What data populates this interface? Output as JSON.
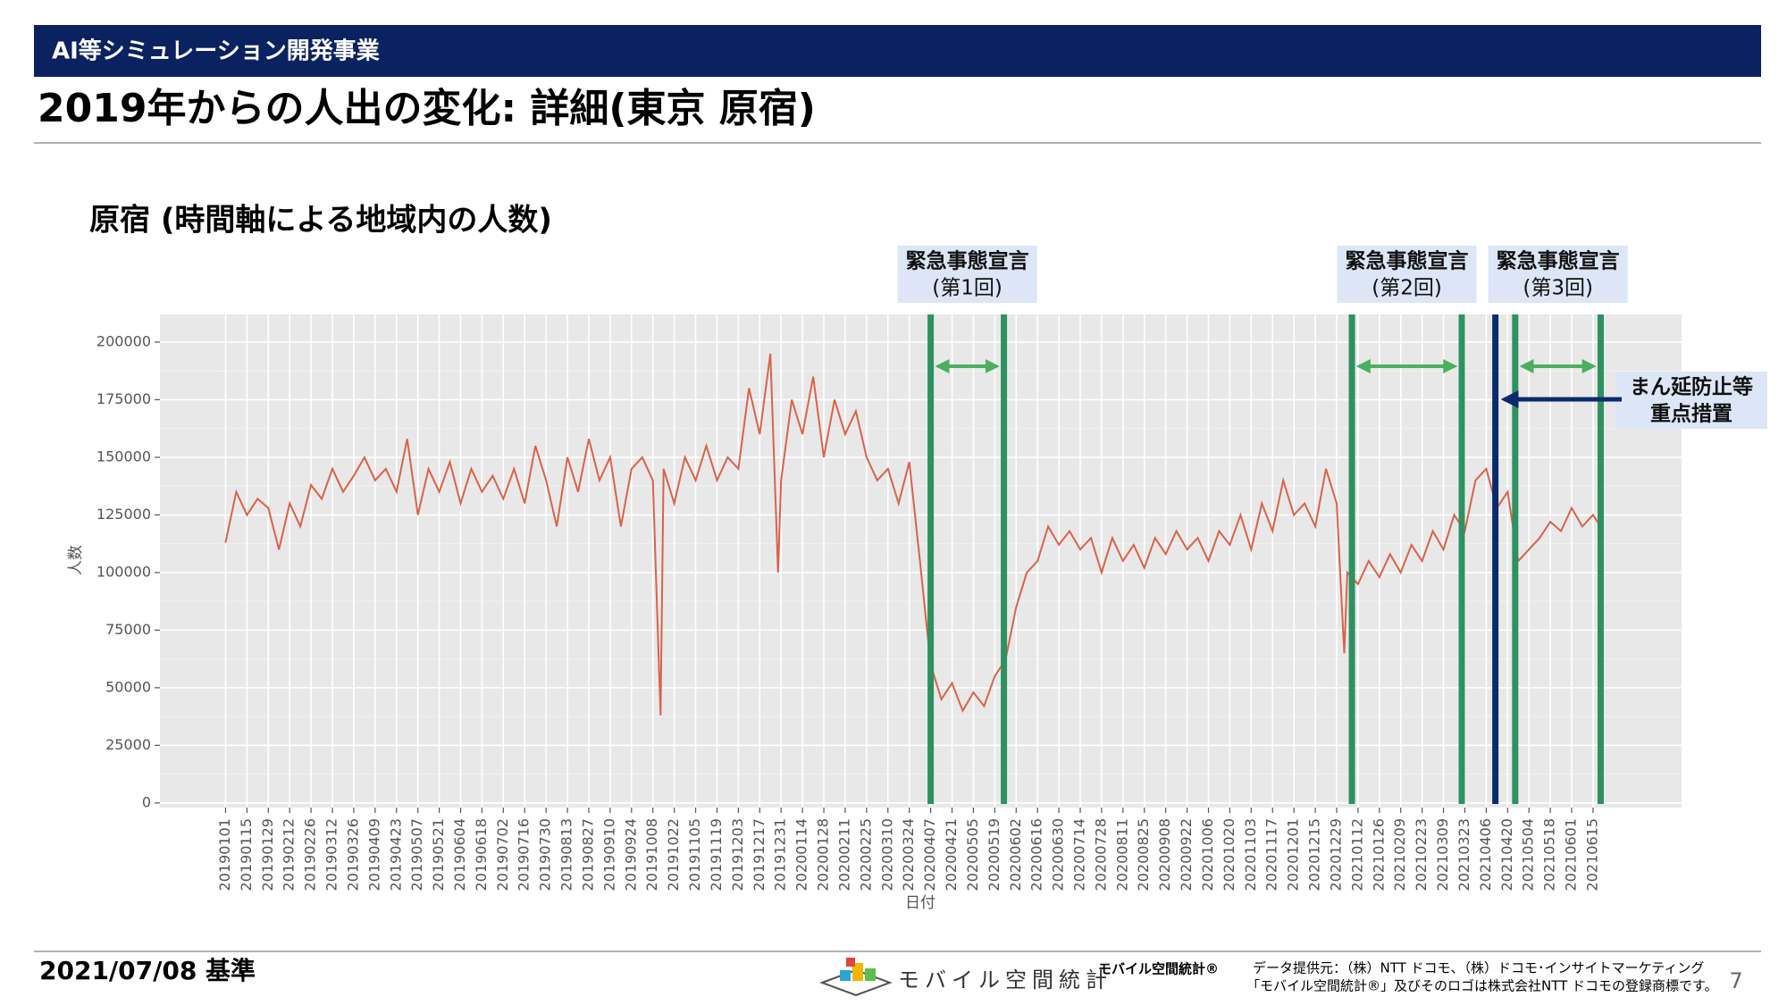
{
  "header": {
    "section": "AI等シミュレーション開発事業",
    "title": "2019年からの人出の変化: 詳細(東京 原宿)"
  },
  "chart_data": {
    "type": "line",
    "title": "原宿 (時間軸による地域内の人数)",
    "x_label": "日付",
    "y_label": "人数",
    "color": "#d9634a",
    "grid": true,
    "x": [
      "20190101",
      "20190108",
      "20190115",
      "20190122",
      "20190129",
      "20190205",
      "20190212",
      "20190219",
      "20190226",
      "20190305",
      "20190312",
      "20190319",
      "20190326",
      "20190402",
      "20190409",
      "20190416",
      "20190423",
      "20190430",
      "20190507",
      "20190514",
      "20190521",
      "20190528",
      "20190604",
      "20190611",
      "20190618",
      "20190625",
      "20190702",
      "20190709",
      "20190716",
      "20190723",
      "20190730",
      "20190806",
      "20190813",
      "20190820",
      "20190827",
      "20190903",
      "20190910",
      "20190917",
      "20190924",
      "20191001",
      "20191008",
      "20191013",
      "20191015",
      "20191022",
      "20191029",
      "20191105",
      "20191112",
      "20191119",
      "20191126",
      "20191203",
      "20191210",
      "20191217",
      "20191224",
      "20191229",
      "20191231",
      "20200107",
      "20200114",
      "20200121",
      "20200128",
      "20200204",
      "20200211",
      "20200218",
      "20200225",
      "20200303",
      "20200310",
      "20200317",
      "20200324",
      "20200331",
      "20200407",
      "20200414",
      "20200421",
      "20200428",
      "20200505",
      "20200512",
      "20200519",
      "20200526",
      "20200602",
      "20200609",
      "20200616",
      "20200623",
      "20200630",
      "20200707",
      "20200714",
      "20200721",
      "20200728",
      "20200804",
      "20200811",
      "20200818",
      "20200825",
      "20200901",
      "20200908",
      "20200915",
      "20200922",
      "20200929",
      "20201006",
      "20201013",
      "20201020",
      "20201027",
      "20201103",
      "20201110",
      "20201117",
      "20201124",
      "20201201",
      "20201208",
      "20201215",
      "20201222",
      "20201229",
      "20210103",
      "20210105",
      "20210112",
      "20210119",
      "20210126",
      "20210202",
      "20210209",
      "20210216",
      "20210223",
      "20210302",
      "20210309",
      "20210316",
      "20210323",
      "20210330",
      "20210406",
      "20210413",
      "20210420",
      "20210427",
      "20210504",
      "20210511",
      "20210518",
      "20210525",
      "20210601",
      "20210608",
      "20210615",
      "20210620"
    ],
    "values": [
      113000,
      135000,
      125000,
      132000,
      128000,
      110000,
      130000,
      120000,
      138000,
      132000,
      145000,
      135000,
      142000,
      150000,
      140000,
      145000,
      135000,
      158000,
      125000,
      145000,
      135000,
      148000,
      130000,
      145000,
      135000,
      142000,
      132000,
      145000,
      130000,
      155000,
      140000,
      120000,
      150000,
      135000,
      158000,
      140000,
      150000,
      120000,
      145000,
      150000,
      140000,
      38000,
      145000,
      130000,
      150000,
      140000,
      155000,
      140000,
      150000,
      145000,
      180000,
      160000,
      195000,
      100000,
      140000,
      175000,
      160000,
      185000,
      150000,
      175000,
      160000,
      170000,
      150000,
      140000,
      145000,
      130000,
      148000,
      105000,
      60000,
      45000,
      52000,
      40000,
      48000,
      42000,
      55000,
      62000,
      85000,
      100000,
      105000,
      120000,
      112000,
      118000,
      110000,
      115000,
      100000,
      115000,
      105000,
      112000,
      102000,
      115000,
      108000,
      118000,
      110000,
      115000,
      105000,
      118000,
      112000,
      125000,
      110000,
      130000,
      118000,
      140000,
      125000,
      130000,
      120000,
      145000,
      130000,
      65000,
      100000,
      95000,
      105000,
      98000,
      108000,
      100000,
      112000,
      105000,
      118000,
      110000,
      125000,
      118000,
      140000,
      145000,
      128000,
      135000,
      105000,
      110000,
      115000,
      122000,
      118000,
      128000,
      120000,
      125000,
      120000
    ],
    "xlim": [
      "20181119",
      "20210812"
    ],
    "xticks": [
      "20190101",
      "20190115",
      "20190129",
      "20190212",
      "20190226",
      "20190312",
      "20190326",
      "20190409",
      "20190423",
      "20190507",
      "20190521",
      "20190604",
      "20190618",
      "20190702",
      "20190716",
      "20190730",
      "20190813",
      "20190827",
      "20190910",
      "20190924",
      "20191008",
      "20191022",
      "20191105",
      "20191119",
      "20191203",
      "20191217",
      "20191231",
      "20200114",
      "20200128",
      "20200211",
      "20200225",
      "20200310",
      "20200324",
      "20200407",
      "20200421",
      "20200505",
      "20200519",
      "20200602",
      "20200616",
      "20200630",
      "20200714",
      "20200728",
      "20200811",
      "20200825",
      "20200908",
      "20200922",
      "20201006",
      "20201020",
      "20201103",
      "20201117",
      "20201201",
      "20201215",
      "20201229",
      "20210112",
      "20210126",
      "20210209",
      "20210223",
      "20210309",
      "20210323",
      "20210406",
      "20210420",
      "20210504",
      "20210518",
      "20210601",
      "20210615"
    ],
    "ylim": [
      -2000,
      212000
    ],
    "yticks": [
      0,
      25000,
      50000,
      75000,
      100000,
      125000,
      150000,
      175000,
      200000
    ],
    "periods": [
      {
        "title": "緊急事態宣言",
        "subtitle": "(第1回)",
        "start": "20200407",
        "end": "20200525"
      },
      {
        "title": "緊急事態宣言",
        "subtitle": "(第2回)",
        "start": "20210108",
        "end": "20210321"
      },
      {
        "title": "緊急事態宣言",
        "subtitle": "(第3回)",
        "start": "20210425",
        "end": "20210620"
      }
    ],
    "marker": {
      "label": [
        "まん延防止等",
        "重点措置"
      ],
      "date": "20210412"
    }
  },
  "footer": {
    "date": "2021/07/08 基準",
    "logo": "モバイル空間統計",
    "brand": "モバイル空間統計®",
    "credit": [
      "データ提供元：（株）NTT ドコモ、（株）ドコモ･インサイトマーケティング",
      "「モバイル空間統計®」及びそのロゴは株式会社NTT ドコモの登録商標です。"
    ],
    "page": "7"
  }
}
